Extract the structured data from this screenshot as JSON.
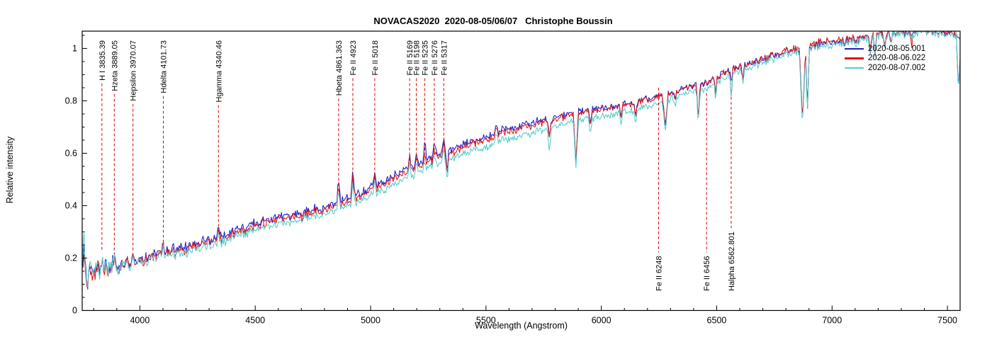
{
  "title": "NOVACAS2020  2020-08-05/06/07   Christophe Boussin",
  "chart_data": {
    "type": "line",
    "title": "NOVACAS2020  2020-08-05/06/07   Christophe Boussin",
    "xlabel": "Wavelength (Angstrom)",
    "ylabel": "Relative intensity",
    "xlim": [
      3750,
      7555
    ],
    "ylim": [
      0,
      1.066
    ],
    "x_ticks_major": [
      4000,
      4500,
      5000,
      5500,
      6000,
      6500,
      7000,
      7500
    ],
    "x_tick_minor_step": 100,
    "y_ticks_major": [
      0,
      0.2,
      0.4,
      0.6,
      0.8,
      1
    ],
    "y_tick_minor_step": 0.05,
    "grid": "off",
    "axis_color": "#000000",
    "annotation_line_color": "#e00000",
    "legend": {
      "position": "top-right",
      "entries": [
        {
          "label": "2020-08-05.001",
          "color": "#1c1ccd"
        },
        {
          "label": "2020-08-06.022",
          "color": "#e01414"
        },
        {
          "label": "2020-08-07.002",
          "color": "#57cdcd"
        }
      ]
    },
    "series": [
      {
        "name": "2020-08-05.001",
        "color": "#1c1ccd",
        "seed": 11,
        "offset_anchors": [
          [
            3750,
            0
          ],
          [
            4200,
            0.01
          ],
          [
            4800,
            0.012
          ],
          [
            5300,
            0.015
          ],
          [
            5900,
            0.01
          ],
          [
            6300,
            0.005
          ],
          [
            6800,
            0
          ],
          [
            7555,
            0
          ]
        ]
      },
      {
        "name": "2020-08-06.022",
        "color": "#e01414",
        "seed": 22,
        "offset_anchors": [
          [
            3750,
            0
          ],
          [
            7555,
            0.003
          ]
        ]
      },
      {
        "name": "2020-08-07.002",
        "color": "#57cdcd",
        "seed": 33,
        "offset_anchors": [
          [
            3750,
            0
          ],
          [
            4200,
            -0.012
          ],
          [
            5000,
            -0.018
          ],
          [
            5600,
            -0.028
          ],
          [
            6200,
            -0.022
          ],
          [
            6800,
            -0.012
          ],
          [
            7555,
            -0.005
          ]
        ]
      }
    ],
    "continuum_anchors": [
      [
        3750,
        0.17
      ],
      [
        3800,
        0.155
      ],
      [
        3860,
        0.165
      ],
      [
        3950,
        0.18
      ],
      [
        4000,
        0.19
      ],
      [
        4100,
        0.215
      ],
      [
        4200,
        0.235
      ],
      [
        4340,
        0.27
      ],
      [
        4500,
        0.325
      ],
      [
        4700,
        0.36
      ],
      [
        4861,
        0.4
      ],
      [
        5000,
        0.455
      ],
      [
        5100,
        0.5
      ],
      [
        5170,
        0.535
      ],
      [
        5250,
        0.565
      ],
      [
        5320,
        0.59
      ],
      [
        5450,
        0.635
      ],
      [
        5550,
        0.67
      ],
      [
        5700,
        0.705
      ],
      [
        5850,
        0.74
      ],
      [
        6000,
        0.765
      ],
      [
        6150,
        0.79
      ],
      [
        6248,
        0.815
      ],
      [
        6350,
        0.84
      ],
      [
        6450,
        0.86
      ],
      [
        6560,
        0.92
      ],
      [
        6650,
        0.94
      ],
      [
        6750,
        0.97
      ],
      [
        6850,
        1.0
      ],
      [
        6950,
        1.02
      ],
      [
        7050,
        1.025
      ],
      [
        7150,
        1.045
      ],
      [
        7250,
        1.06
      ],
      [
        7400,
        1.07
      ],
      [
        7555,
        1.05
      ]
    ],
    "noise_anchors": [
      [
        3750,
        0.055
      ],
      [
        3820,
        0.045
      ],
      [
        3900,
        0.03
      ],
      [
        4000,
        0.022
      ],
      [
        4300,
        0.018
      ],
      [
        4800,
        0.016
      ],
      [
        5400,
        0.014
      ],
      [
        6000,
        0.013
      ],
      [
        6600,
        0.014
      ],
      [
        7000,
        0.016
      ],
      [
        7555,
        0.018
      ]
    ],
    "emission_lines": [
      {
        "wavelength": 3756,
        "height": 0.1,
        "width": 8,
        "scales": [
          0.7,
          0.5,
          1.3
        ]
      },
      {
        "wavelength": 3835.39,
        "height": 0.055,
        "width": 8
      },
      {
        "wavelength": 3889.05,
        "height": 0.055,
        "width": 8
      },
      {
        "wavelength": 3970.07,
        "height": 0.05,
        "width": 8
      },
      {
        "wavelength": 4101.73,
        "height": 0.045,
        "width": 8
      },
      {
        "wavelength": 4340.46,
        "height": 0.045,
        "width": 8
      },
      {
        "wavelength": 4861.363,
        "height": 0.075,
        "width": 8,
        "scales": [
          1.2,
          1,
          1
        ]
      },
      {
        "wavelength": 4923,
        "height": 0.085,
        "width": 8,
        "scales": [
          1.25,
          1,
          1
        ]
      },
      {
        "wavelength": 5018,
        "height": 0.055,
        "width": 8,
        "scales": [
          1,
          1,
          1.2
        ]
      },
      {
        "wavelength": 5169,
        "height": 0.05,
        "width": 8
      },
      {
        "wavelength": 5198,
        "height": 0.04,
        "width": 8
      },
      {
        "wavelength": 5235,
        "height": 0.035,
        "width": 8,
        "scales": [
          2.6,
          1,
          1
        ]
      },
      {
        "wavelength": 5276,
        "height": 0.045,
        "width": 8,
        "scales": [
          1.5,
          1,
          1
        ]
      },
      {
        "wavelength": 5317,
        "height": 0.05,
        "width": 8
      },
      {
        "wavelength": 5545,
        "height": 0.045,
        "width": 7
      }
    ],
    "absorption_lines": [
      {
        "wavelength": 3772,
        "depth": 0.08,
        "width": 8,
        "scales": [
          1,
          1.3,
          1
        ]
      },
      {
        "wavelength": 5332,
        "depth": 0.075,
        "width": 7
      },
      {
        "wavelength": 5775,
        "depth": 0.085,
        "width": 9,
        "scales": [
          1,
          1,
          1.3
        ]
      },
      {
        "wavelength": 5890,
        "depth": 0.185,
        "width": 11,
        "scales": [
          1,
          1,
          0.95
        ]
      },
      {
        "wavelength": 5953,
        "depth": 0.06,
        "width": 7
      },
      {
        "wavelength": 6085,
        "depth": 0.045,
        "width": 7
      },
      {
        "wavelength": 6149,
        "depth": 0.07,
        "width": 8
      },
      {
        "wavelength": 6277,
        "depth": 0.115,
        "width": 13
      },
      {
        "wavelength": 6320,
        "depth": 0.04,
        "width": 7
      },
      {
        "wavelength": 6420,
        "depth": 0.135,
        "width": 8
      },
      {
        "wavelength": 6495,
        "depth": 0.055,
        "width": 7
      },
      {
        "wavelength": 6563,
        "depth": 0.105,
        "width": 7,
        "scales": [
          0.5,
          1.1,
          0.9
        ]
      },
      {
        "wavelength": 6613,
        "depth": 0.05,
        "width": 7
      },
      {
        "wavelength": 6872,
        "depth": 0.27,
        "width": 14,
        "scales": [
          1,
          1,
          1.05
        ]
      },
      {
        "wavelength": 6893,
        "depth": 0.24,
        "width": 9,
        "scales": [
          1,
          1.05,
          1
        ]
      },
      {
        "wavelength": 7165,
        "depth": 0.065,
        "width": 8
      },
      {
        "wavelength": 7186,
        "depth": 0.075,
        "width": 8
      },
      {
        "wavelength": 7230,
        "depth": 0.06,
        "width": 8
      },
      {
        "wavelength": 7255,
        "depth": 0.055,
        "width": 7
      },
      {
        "wavelength": 7345,
        "depth": 0.065,
        "width": 7,
        "scales": [
          0.3,
          1,
          0.3
        ]
      },
      {
        "wavelength": 7548,
        "depth": 0.235,
        "width": 9,
        "scales": [
          1,
          0.15,
          1.05
        ]
      }
    ],
    "annotations_top": [
      {
        "label": "H I 3835.39",
        "wavelength": 3835.39,
        "line_end_intensity": 0.225
      },
      {
        "label": "Hzeta 3889.05",
        "wavelength": 3889.05,
        "line_end_intensity": 0.215
      },
      {
        "label": "Hepsilon 3970.07",
        "wavelength": 3970.07,
        "line_end_intensity": 0.225
      },
      {
        "label": "Hdelta 4101.73",
        "wavelength": 4101.73,
        "line_end_intensity": 0.25
      },
      {
        "label": "Hgamma 4340.46",
        "wavelength": 4340.46,
        "line_end_intensity": 0.3
      },
      {
        "label": "Hbeta 4861.363",
        "wavelength": 4861.363,
        "line_end_intensity": 0.475
      },
      {
        "label": "Fe II 4923",
        "wavelength": 4923,
        "line_end_intensity": 0.505
      },
      {
        "label": "Fe II 5018",
        "wavelength": 5018,
        "line_end_intensity": 0.5
      },
      {
        "label": "Fe II 5169",
        "wavelength": 5169,
        "line_end_intensity": 0.565
      },
      {
        "label": "Fe II 5198",
        "wavelength": 5198,
        "line_end_intensity": 0.575
      },
      {
        "label": "Fe II 5235",
        "wavelength": 5235,
        "line_end_intensity": 0.585
      },
      {
        "label": "Fe II 5276",
        "wavelength": 5276,
        "line_end_intensity": 0.595
      },
      {
        "label": "Fe II 5317",
        "wavelength": 5317,
        "line_end_intensity": 0.62
      }
    ],
    "annotations_bottom": [
      {
        "label": "Fe II 6248",
        "wavelength": 6248,
        "line_end_intensity": 0.85
      },
      {
        "label": "Fe II 6456",
        "wavelength": 6456,
        "line_end_intensity": 0.83
      },
      {
        "label": "Halpha 6562.801",
        "wavelength": 6562.801,
        "line_end_intensity": 0.815
      }
    ]
  }
}
